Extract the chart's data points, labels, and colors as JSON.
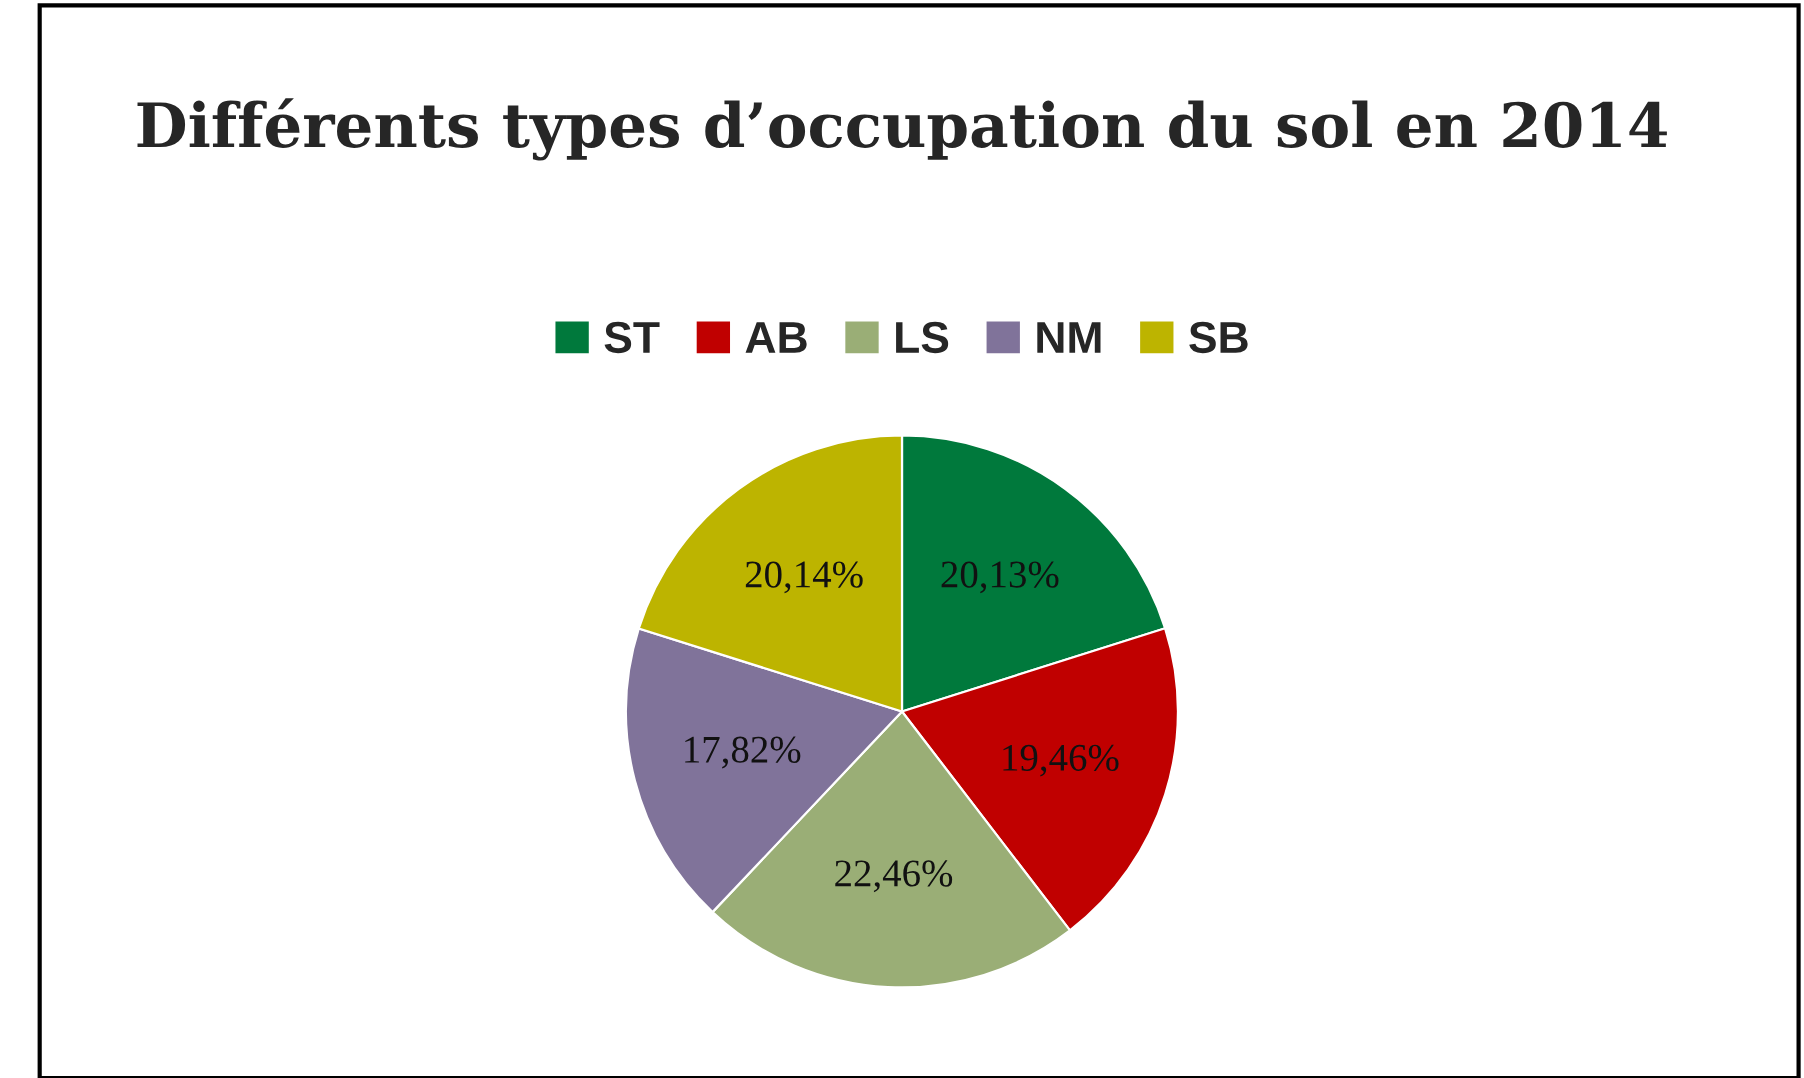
{
  "chart_data": {
    "type": "pie",
    "title": "Différents types d’occupation du sol en 2014",
    "categories": [
      "ST",
      "AB",
      "LS",
      "NM",
      "SB"
    ],
    "values": [
      20.13,
      19.46,
      22.46,
      17.82,
      20.14
    ],
    "colors": [
      "#00793c",
      "#c00000",
      "#9aae76",
      "#80739a",
      "#bdb400"
    ],
    "value_labels": [
      "20,13%",
      "19,46%",
      "22,46%",
      "17,82%",
      "20,14%"
    ],
    "legend": "top"
  }
}
